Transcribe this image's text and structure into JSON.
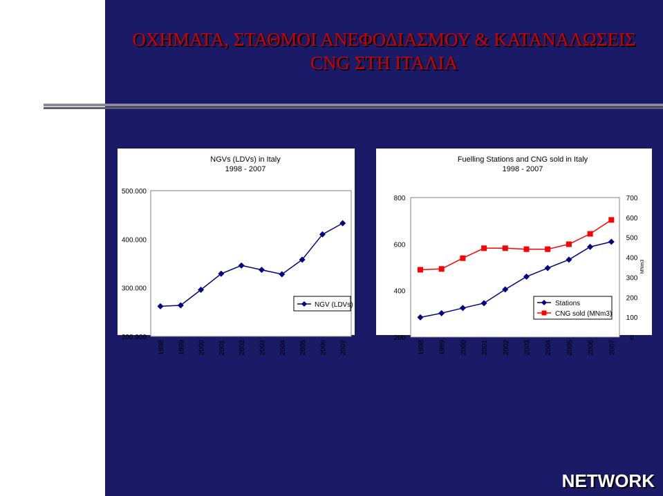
{
  "slide": {
    "title_line1": "ΟΧΗΜΑΤΑ, ΣΤΑΘΜΟΙ ΑΝΕΦΟΔΙΑΣΜΟΥ & ΚΑΤΑΝΑΛΩΣΕΙΣ",
    "title_line2": "CNG ΣΤΗ ΙΤΑΛΙΑ",
    "footer": "NETWORK",
    "colors": {
      "background": "#1a1a66",
      "title": "#cc0000"
    }
  },
  "chart_data": [
    {
      "type": "line",
      "title_line1": "NGVs (LDVs) in Italy",
      "title_line2": "1998 - 2007",
      "categories": [
        "1998",
        "1999",
        "2000",
        "2001",
        "2002",
        "2003",
        "2004",
        "2005",
        "2006",
        "2007"
      ],
      "ylim": [
        200000,
        500000
      ],
      "yticks": [
        "200.000",
        "300.000",
        "400.000",
        "500.000"
      ],
      "legend_position": "right",
      "series": [
        {
          "name": "NGV (LDVs)",
          "color": "#000080",
          "marker": "diamond",
          "values": [
            262000,
            264000,
            296000,
            329000,
            346000,
            337000,
            328000,
            358000,
            410000,
            433000
          ]
        }
      ]
    },
    {
      "type": "line",
      "title_line1": "Fuelling Stations and CNG sold in Italy",
      "title_line2": "1998 - 2007",
      "categories": [
        "1998",
        "1999",
        "2000",
        "2001",
        "2002",
        "2003",
        "2004",
        "2005",
        "2006",
        "2007"
      ],
      "y_left": {
        "ylim": [
          200,
          800
        ],
        "ticks": [
          "200",
          "400",
          "600",
          "800"
        ]
      },
      "y_right": {
        "ylim": [
          0,
          700
        ],
        "ticks": [
          "0",
          "100",
          "200",
          "300",
          "400",
          "500",
          "600",
          "700"
        ],
        "label": "MNm3"
      },
      "legend_position": "right",
      "series": [
        {
          "name": "Stations",
          "axis": "left",
          "color": "#000080",
          "marker": "diamond",
          "values": [
            285,
            303,
            325,
            346,
            405,
            460,
            497,
            533,
            588,
            610
          ]
        },
        {
          "name": "CNG sold (MNm3)",
          "axis": "right",
          "color": "#ff0000",
          "marker": "square",
          "values": [
            338,
            342,
            396,
            446,
            446,
            441,
            441,
            466,
            518,
            588
          ]
        }
      ]
    }
  ]
}
